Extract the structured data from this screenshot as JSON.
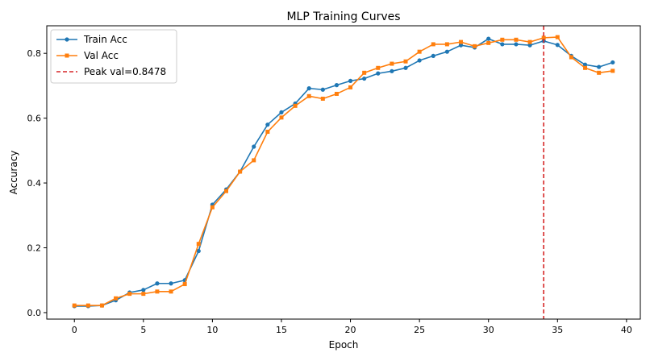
{
  "chart_data": {
    "type": "line",
    "title": "MLP Training Curves",
    "xlabel": "Epoch",
    "ylabel": "Accuracy",
    "xlim": [
      -2,
      41
    ],
    "ylim": [
      -0.02,
      0.885
    ],
    "xticks": [
      0,
      5,
      10,
      15,
      20,
      25,
      30,
      35,
      40
    ],
    "yticks": [
      0.0,
      0.2,
      0.4,
      0.6,
      0.8
    ],
    "ytick_labels": [
      "0.0",
      "0.2",
      "0.4",
      "0.6",
      "0.8"
    ],
    "x": [
      0,
      1,
      2,
      3,
      4,
      5,
      6,
      7,
      8,
      9,
      10,
      11,
      12,
      13,
      14,
      15,
      16,
      17,
      18,
      19,
      20,
      21,
      22,
      23,
      24,
      25,
      26,
      27,
      28,
      29,
      30,
      31,
      32,
      33,
      34,
      35,
      36,
      37,
      38,
      39
    ],
    "series": [
      {
        "name": "Train Acc",
        "color": "#1f77b4",
        "marker": "circle",
        "values": [
          0.02,
          0.02,
          0.022,
          0.038,
          0.062,
          0.07,
          0.09,
          0.09,
          0.1,
          0.19,
          0.333,
          0.38,
          0.435,
          0.512,
          0.58,
          0.618,
          0.645,
          0.692,
          0.688,
          0.702,
          0.715,
          0.722,
          0.738,
          0.745,
          0.755,
          0.778,
          0.792,
          0.805,
          0.825,
          0.818,
          0.845,
          0.828,
          0.828,
          0.825,
          0.838,
          0.826,
          0.792,
          0.765,
          0.758,
          0.772
        ]
      },
      {
        "name": "Val Acc",
        "color": "#ff7f0e",
        "marker": "square",
        "values": [
          0.022,
          0.022,
          0.022,
          0.044,
          0.058,
          0.058,
          0.065,
          0.065,
          0.088,
          0.212,
          0.325,
          0.375,
          0.435,
          0.47,
          0.558,
          0.602,
          0.638,
          0.668,
          0.66,
          0.675,
          0.695,
          0.74,
          0.755,
          0.768,
          0.775,
          0.805,
          0.828,
          0.828,
          0.835,
          0.822,
          0.832,
          0.842,
          0.842,
          0.835,
          0.848,
          0.85,
          0.788,
          0.755,
          0.74,
          0.746
        ]
      }
    ],
    "vline": {
      "name": "Peak val=0.8478",
      "x": 34,
      "color": "#d62728",
      "style": "dashed"
    },
    "legend": {
      "position": "top-left",
      "entries": [
        "Train Acc",
        "Val Acc",
        "Peak val=0.8478"
      ]
    },
    "grid": false
  }
}
